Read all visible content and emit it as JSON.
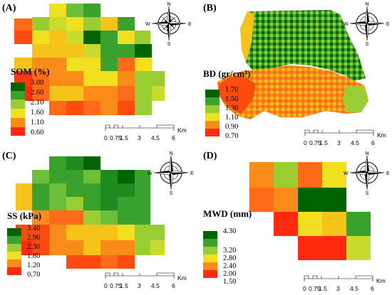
{
  "panels": [
    {
      "id": "A",
      "label": "(A)",
      "title": "SOM (%)",
      "ticks": [
        "3.00",
        "2.60",
        "2.10",
        "1.60",
        "1.10",
        "0.60"
      ],
      "colors": [
        "#006400",
        "#3aa12c",
        "#9acd32",
        "#f0e020",
        "#f98b18",
        "#ff2a10"
      ]
    },
    {
      "id": "B",
      "label": "(B)",
      "title": "BD (gr/cm³)",
      "ticks": [
        "1.70",
        "1.50",
        "1.30",
        "1.10",
        "0.90",
        "0.70"
      ],
      "colors": [
        "#006400",
        "#3aa12c",
        "#9acd32",
        "#f0e020",
        "#f98b18",
        "#ff2a10"
      ]
    },
    {
      "id": "C",
      "label": "(C)",
      "title": "SS (kPa)",
      "ticks": [
        "3.40",
        "2.90",
        "2.30",
        "1.80",
        "1.20",
        "0.70"
      ],
      "colors": [
        "#006400",
        "#3aa12c",
        "#9acd32",
        "#f0e020",
        "#f98b18",
        "#ff2a10"
      ]
    },
    {
      "id": "D",
      "label": "(D)",
      "title": "MWD (mm)",
      "ticks": [
        "4.30",
        "3.20",
        "2.80",
        "2.40",
        "2.00",
        "1.50"
      ],
      "colors": [
        "#006400",
        "#3aa12c",
        "#9acd32",
        "#f0e020",
        "#f98b18",
        "#ff2a10"
      ]
    }
  ],
  "compass": {
    "north": "N",
    "south": "S",
    "east": "E",
    "west": "W"
  },
  "scale_bar": {
    "labels": [
      "0",
      "0.75",
      "1.5",
      "3",
      "4.5",
      "6"
    ],
    "unit": "Km"
  },
  "icons": {
    "compass": "compass-rose-icon"
  }
}
